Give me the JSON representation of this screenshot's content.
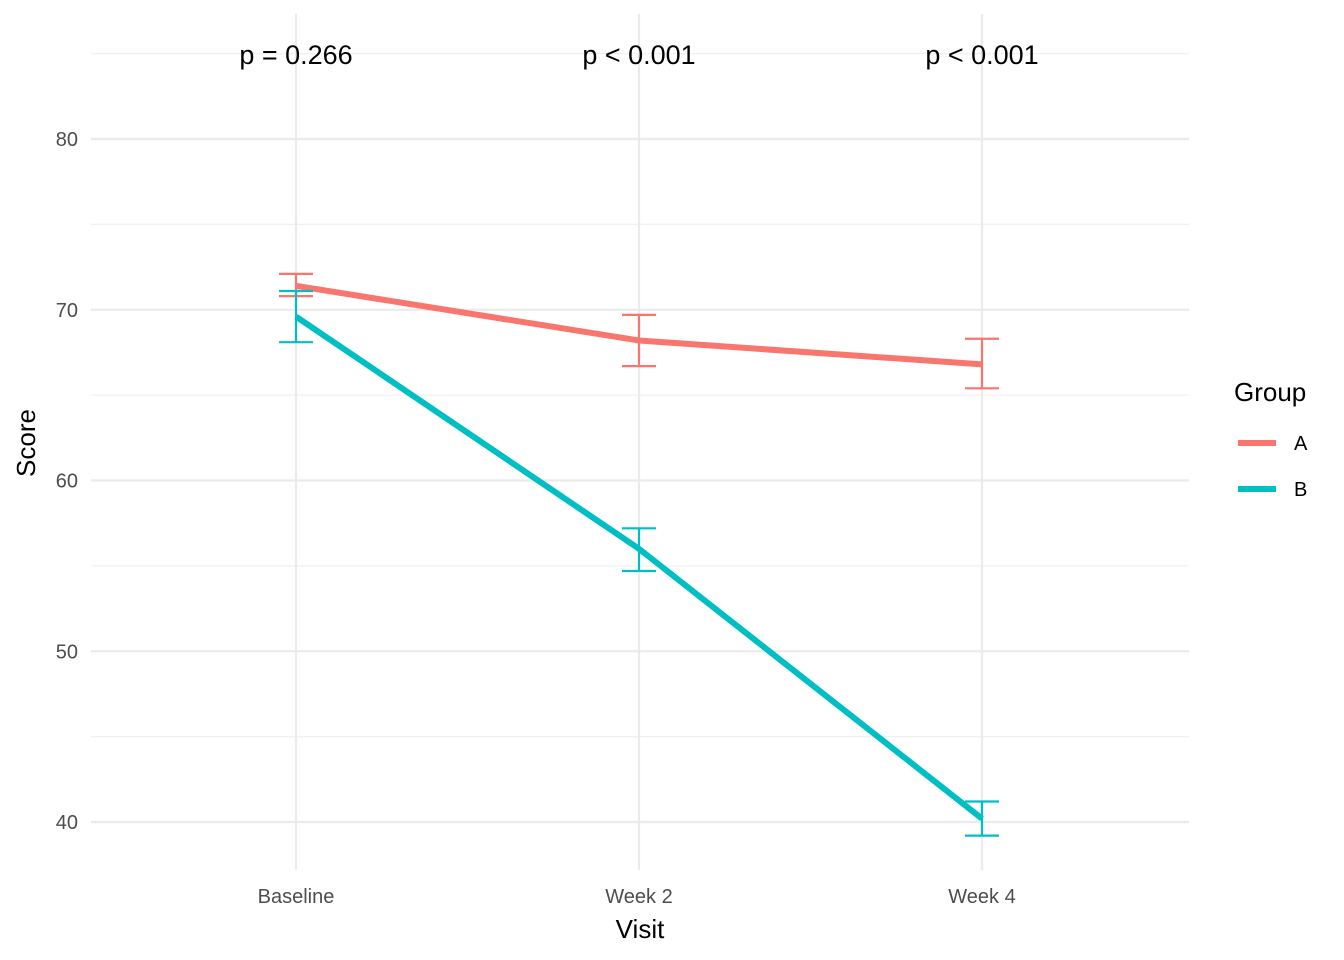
{
  "chart_data": {
    "type": "line",
    "title": "",
    "xlabel": "Visit",
    "ylabel": "Score",
    "categories": [
      "Baseline",
      "Week 2",
      "Week 4"
    ],
    "ylim": [
      37,
      86
    ],
    "yticks": [
      40,
      50,
      60,
      70,
      80
    ],
    "grid": true,
    "legend": {
      "title": "Group",
      "position": "right"
    },
    "series": [
      {
        "name": "A",
        "color": "#F8766D",
        "values": [
          71.4,
          68.2,
          66.8
        ],
        "error_low": [
          70.8,
          66.7,
          65.4
        ],
        "error_high": [
          72.1,
          69.7,
          68.3
        ]
      },
      {
        "name": "B",
        "color": "#00BFC4",
        "values": [
          69.6,
          56.0,
          40.2
        ],
        "error_low": [
          68.1,
          54.7,
          39.2
        ],
        "error_high": [
          71.1,
          57.2,
          41.2
        ]
      }
    ],
    "annotations": [
      "p = 0.266",
      "p < 0.001",
      "p < 0.001"
    ]
  }
}
